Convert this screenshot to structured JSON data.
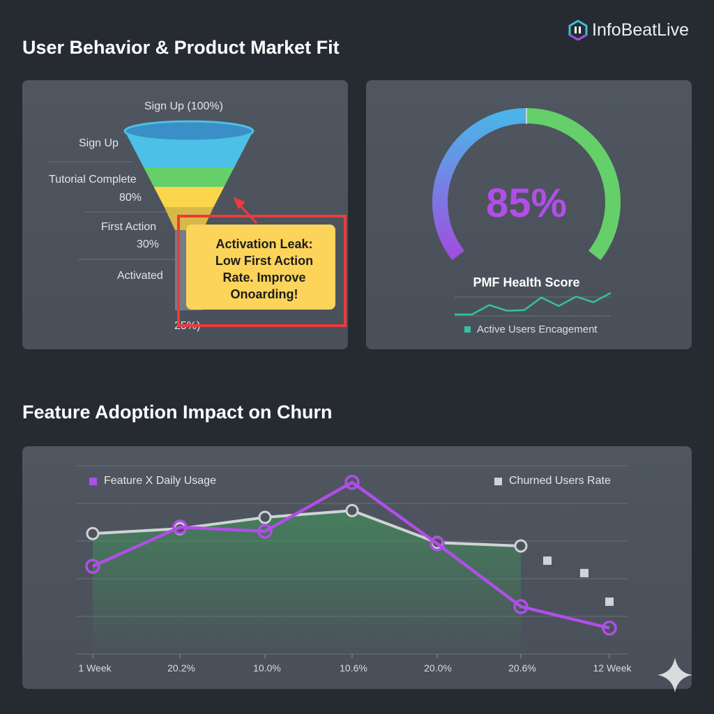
{
  "header": {
    "title": "User Behavior & Product Market Fit",
    "brand": "InfoBeatLive"
  },
  "funnel": {
    "top_label": "Sign Up (100%)",
    "stages": [
      {
        "label": "Sign Up",
        "value": ""
      },
      {
        "label": "Tutorial Complete",
        "value": "80%"
      },
      {
        "label": "First Action",
        "value": "30%"
      },
      {
        "label": "Activated",
        "value": "25%)"
      }
    ],
    "colors": [
      "#3a8fc7",
      "#4cc0e6",
      "#65d06a",
      "#fbd54c",
      "#d9b84a",
      "#737d87"
    ],
    "callout": {
      "lines": [
        "Activation Leak:",
        "Low First Action",
        "Rate. Improve",
        "Onoarding!"
      ],
      "border_color": "#ee3a3a"
    }
  },
  "gauge": {
    "value": 85,
    "value_text": "85%",
    "label": "PMF Health Score",
    "legend": "Active Users Encagement",
    "colors": {
      "start": "#a04ee0",
      "mid": "#4cb4e8",
      "end": "#65d06a",
      "text": "#b24ee8",
      "spark": "#37c0a0"
    }
  },
  "section2": {
    "title": "Feature Adoption Impact on Churn"
  },
  "chart_data": {
    "type": "line",
    "categories": [
      "1 Week",
      "20.2%",
      "10.0%",
      "10.6%",
      "20.0%",
      "20.6%",
      "12 Week"
    ],
    "series": [
      {
        "name": "Feature X Daily Usage",
        "color": "#b04ee8",
        "values": [
          2.33,
          3.37,
          3.26,
          4.56,
          2.93,
          1.26,
          0.69
        ]
      },
      {
        "name": "Churned Users Rate",
        "color": "#d0d3d6",
        "values": [
          3.2,
          3.33,
          3.63,
          3.81,
          2.96,
          2.87,
          null
        ],
        "extra_squares": [
          2.48,
          2.15,
          1.39
        ]
      }
    ],
    "ylim": [
      0,
      5
    ],
    "grid": true,
    "legend": "top",
    "sparkline": {
      "values": [
        0,
        0,
        1,
        0.4,
        0.45,
        1.8,
        0.9,
        1.9,
        1.3,
        2.3
      ]
    }
  }
}
